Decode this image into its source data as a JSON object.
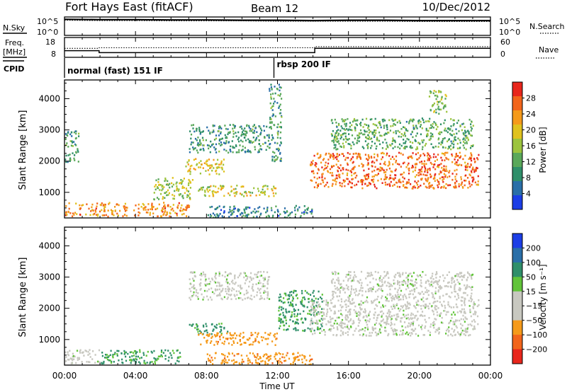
{
  "chart_data": [
    {
      "type": "line",
      "panel": "noise",
      "title": "Fort Hays East (fitACF)",
      "subtitle": "Beam 12",
      "date": "10/Dec/2012",
      "left_label": "N.Sky",
      "right_label": "N.Search",
      "left_ticks": [
        "10^5",
        "10^0"
      ],
      "right_ticks": [
        "10^5",
        "10^0"
      ],
      "series": [
        {
          "name": "N.Sky",
          "x": [
            0,
            2,
            4,
            6,
            8,
            10,
            12,
            14,
            16,
            18,
            20,
            22,
            24
          ],
          "values": [
            4.7,
            4.6,
            4.6,
            4.5,
            4.5,
            4.4,
            4.4,
            4.3,
            4.4,
            4.4,
            4.3,
            4.3,
            4.3
          ]
        },
        {
          "name": "N.Search",
          "x": [
            0,
            2,
            4,
            6,
            8,
            10,
            12,
            14,
            16,
            18,
            20,
            22,
            24
          ],
          "values": [
            4.4,
            4.3,
            4.3,
            4.2,
            4.2,
            4.2,
            4.1,
            4.1,
            4.1,
            4.1,
            4.0,
            4.0,
            4.0
          ]
        }
      ]
    },
    {
      "type": "line",
      "panel": "frequency",
      "left_label_line1": "Freq.",
      "left_label_line2": "[MHz]",
      "right_label": "Nave",
      "left_ticks": [
        "18",
        "8"
      ],
      "right_ticks": [
        "60",
        "0"
      ],
      "series": [
        {
          "name": "Freq.",
          "step_x": [
            0,
            1.95,
            14.1,
            24
          ],
          "step_y": [
            11.2,
            10.0,
            12.7
          ]
        },
        {
          "name": "Nave",
          "step_x": [
            0,
            1.95,
            14.1,
            24
          ],
          "step_y": [
            28,
            30,
            34
          ]
        }
      ]
    },
    {
      "type": "table",
      "panel": "cpid",
      "label": "CPID",
      "segments": [
        {
          "start": 0,
          "end": 11.8,
          "text": "normal (fast) 151 IF"
        },
        {
          "start": 11.8,
          "end": 24,
          "text": "rbsp 200 IF"
        }
      ]
    },
    {
      "type": "heatmap",
      "panel": "power",
      "ylabel": "Slant Range [km]",
      "ylim": [
        180,
        4600
      ],
      "yticks": [
        1000,
        2000,
        3000,
        4000
      ],
      "colorbar_label": "Power [dB]",
      "colorbar_ticks": [
        "4",
        "8",
        "12",
        "16",
        "20",
        "24",
        "28"
      ],
      "colorbar_range": [
        0,
        32
      ],
      "colorbar_colors": [
        "#1c3ee6",
        "#2a6fa8",
        "#2f8f6a",
        "#5aa85a",
        "#9cc43e",
        "#e0c21e",
        "#f59a1a",
        "#f2651b",
        "#e8261c"
      ],
      "regions": [
        {
          "t0": 0.0,
          "t1": 7.0,
          "r0": 250,
          "r1": 700,
          "value": 24
        },
        {
          "t0": 5.0,
          "t1": 7.2,
          "r0": 800,
          "r1": 1500,
          "value": 16
        },
        {
          "t0": 6.8,
          "t1": 9.0,
          "r0": 1600,
          "r1": 2100,
          "value": 20
        },
        {
          "t0": 7.5,
          "t1": 12.0,
          "r0": 900,
          "r1": 1250,
          "value": 18
        },
        {
          "t0": 7.0,
          "t1": 11.5,
          "r0": 2300,
          "r1": 3200,
          "value": 10
        },
        {
          "t0": 0.0,
          "t1": 0.8,
          "r0": 2000,
          "r1": 3000,
          "value": 10
        },
        {
          "t0": 13.8,
          "t1": 23.3,
          "r0": 1150,
          "r1": 2300,
          "value": 26
        },
        {
          "t0": 15.0,
          "t1": 23.0,
          "r0": 2400,
          "r1": 3400,
          "value": 12
        },
        {
          "t0": 20.5,
          "t1": 21.5,
          "r0": 3500,
          "r1": 4300,
          "value": 14
        },
        {
          "t0": 11.5,
          "t1": 12.2,
          "r0": 2000,
          "r1": 4500,
          "value": 10
        },
        {
          "t0": 8.0,
          "t1": 14.0,
          "r0": 180,
          "r1": 600,
          "value": 8
        }
      ]
    },
    {
      "type": "heatmap",
      "panel": "velocity",
      "ylabel": "Slant Range [km]",
      "xlabel": "Time UT",
      "ylim": [
        180,
        4600
      ],
      "yticks": [
        1000,
        2000,
        3000,
        4000
      ],
      "xticks": [
        "00:00",
        "04:00",
        "08:00",
        "12:00",
        "16:00",
        "20:00",
        "00:00"
      ],
      "xrange": [
        0,
        24
      ],
      "colorbar_label": "Velocity [m s⁻¹]",
      "colorbar_ticks": [
        "200",
        "100",
        "50",
        "15",
        "−15",
        "−50",
        "−100",
        "−200"
      ],
      "colorbar_colors": [
        "#1c3ee6",
        "#2a6fa8",
        "#2f8f6a",
        "#62c43a",
        "#c8c8c0",
        "#c8c8c0",
        "#f59a1a",
        "#f2651b",
        "#e8261c"
      ],
      "regions": [
        {
          "t0": 0.0,
          "t1": 2.0,
          "r0": 250,
          "r1": 700,
          "value": 0
        },
        {
          "t0": 2.0,
          "t1": 6.5,
          "r0": 250,
          "r1": 700,
          "value": 40
        },
        {
          "t0": 7.0,
          "t1": 9.2,
          "r0": 1200,
          "r1": 1550,
          "value": 40
        },
        {
          "t0": 7.5,
          "t1": 12.0,
          "r0": 850,
          "r1": 1250,
          "value": -60
        },
        {
          "t0": 7.0,
          "t1": 11.5,
          "r0": 2300,
          "r1": 3200,
          "value": 0
        },
        {
          "t0": 12.0,
          "t1": 14.5,
          "r0": 1300,
          "r1": 2600,
          "value": 40
        },
        {
          "t0": 13.8,
          "t1": 23.3,
          "r0": 1150,
          "r1": 2300,
          "value": 0
        },
        {
          "t0": 15.0,
          "t1": 23.0,
          "r0": 2300,
          "r1": 3200,
          "value": 0
        },
        {
          "t0": 8.0,
          "t1": 14.0,
          "r0": 180,
          "r1": 600,
          "value": -60
        }
      ]
    }
  ]
}
